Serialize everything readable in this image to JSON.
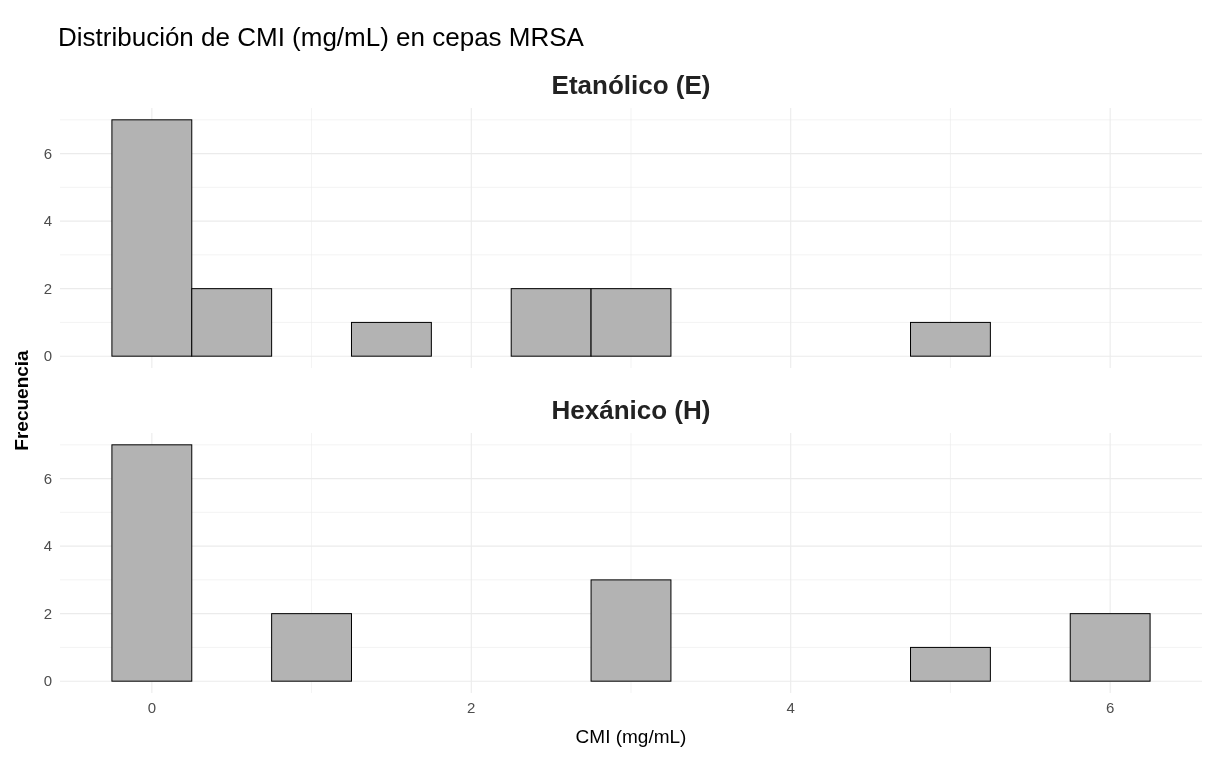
{
  "chart_data": [
    {
      "type": "histogram",
      "title": "Distribución de CMI (mg/mL) en cepas MRSA",
      "subtitle": "Etanólico (E)",
      "ylabel": "Frecuencia",
      "bins": [
        -0.25,
        0.25,
        0.75,
        1.25,
        1.75,
        2.25,
        2.75,
        3.25,
        3.75,
        4.25,
        4.75,
        5.25,
        5.75,
        6.25
      ],
      "values": [
        7,
        2,
        0,
        1,
        0,
        2,
        2,
        0,
        0,
        0,
        1,
        0,
        0
      ],
      "color": "#b3b3b3",
      "xlim": [
        -0.575,
        6.575
      ],
      "xticks": [
        0,
        {
          "value": 1,
          "label": null
        },
        2,
        {
          "value": 3,
          "label": null
        },
        4,
        {
          "value": 5,
          "label": null
        },
        6
      ],
      "ylim": [
        -0.35,
        7.35
      ],
      "yticks": [
        0,
        {
          "value": 1,
          "label": null
        },
        2,
        {
          "value": 3,
          "label": null
        },
        4,
        {
          "value": 5,
          "label": null
        },
        6,
        {
          "value": 7,
          "label": null
        }
      ],
      "grid": true,
      "tick_labels": "y"
    },
    {
      "type": "histogram",
      "subtitle": "Hexánico (H)",
      "xlabel": "CMI (mg/mL)",
      "bins": [
        -0.25,
        0.25,
        0.75,
        1.25,
        1.75,
        2.25,
        2.75,
        3.25,
        3.75,
        4.25,
        4.75,
        5.25,
        5.75,
        6.25
      ],
      "values": [
        7,
        0,
        2,
        0,
        0,
        0,
        3,
        0,
        0,
        0,
        1,
        0,
        2
      ],
      "color": "#b3b3b3",
      "xlim": [
        -0.575,
        6.575
      ],
      "xticks": [
        0,
        {
          "value": 1,
          "label": null
        },
        2,
        {
          "value": 3,
          "label": null
        },
        4,
        {
          "value": 5,
          "label": null
        },
        6
      ],
      "ylim": [
        -0.35,
        7.35
      ],
      "yticks": [
        0,
        {
          "value": 1,
          "label": null
        },
        2,
        {
          "value": 3,
          "label": null
        },
        4,
        {
          "value": 5,
          "label": null
        },
        6,
        {
          "value": 7,
          "label": null
        }
      ],
      "grid": true
    }
  ]
}
